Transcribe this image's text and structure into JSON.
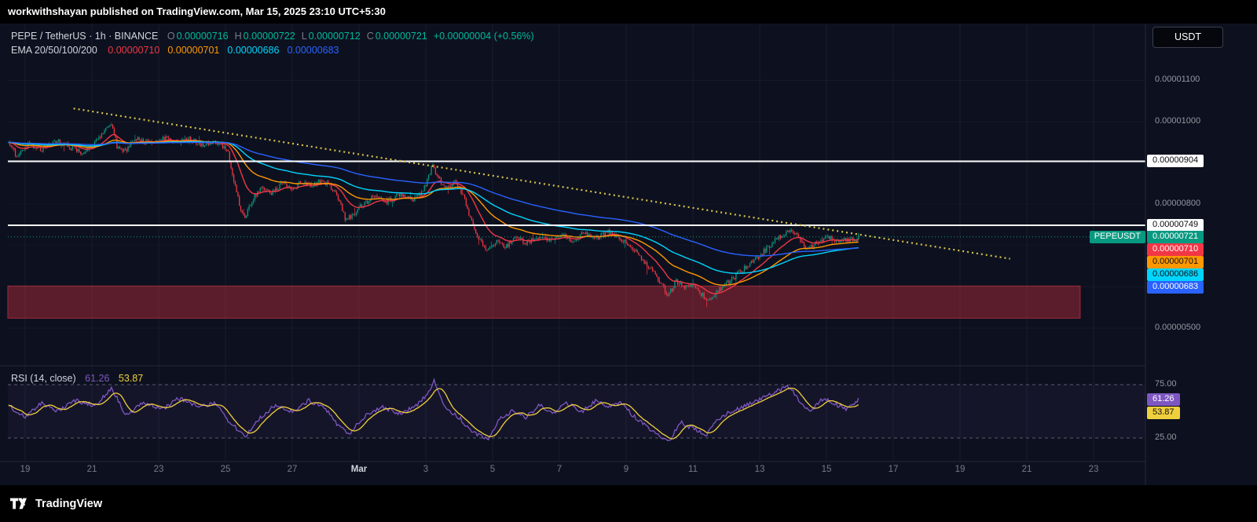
{
  "banner": {
    "text": "workwithshayan published on TradingView.com, Mar 15, 2025 23:10 UTC+5:30"
  },
  "header": {
    "symbol_line": "PEPE / TetherUS · 1h · BINANCE",
    "ohlc": [
      {
        "label": "O",
        "value": "0.00000716"
      },
      {
        "label": "H",
        "value": "0.00000722"
      },
      {
        "label": "L",
        "value": "0.00000712"
      },
      {
        "label": "C",
        "value": "0.00000721"
      }
    ],
    "change": "+0.00000004 (+0.56%)"
  },
  "ema_legend": {
    "label": "EMA 20/50/100/200",
    "values": [
      {
        "text": "0.00000710",
        "color": "#f23645"
      },
      {
        "text": "0.00000701",
        "color": "#ff9800"
      },
      {
        "text": "0.00000686",
        "color": "#00d5ff"
      },
      {
        "text": "0.00000683",
        "color": "#2962ff"
      }
    ]
  },
  "currency_button": "USDT",
  "footer": {
    "brand": "TradingView"
  },
  "colors": {
    "ohlc_text": "#00b99a",
    "background": "#0d111f",
    "grid": "rgba(255,255,255,0.05)"
  },
  "chart_data": {
    "type": "candlestick",
    "title": "PEPE / TetherUS 1h BINANCE",
    "price_unit": "USDT x 1e-8",
    "up_color": "#089981",
    "down_color": "#f23645",
    "close_line": 721,
    "levels": [
      904,
      749
    ],
    "zone": {
      "price_top": 602,
      "price_bottom": 524,
      "day_start": -0.52,
      "day_end": 31.6,
      "color": "#f23645"
    },
    "trendline": {
      "day1": 1.45,
      "price1": 1032,
      "day2": 29.5,
      "price2": 668,
      "color": "#d8c34a",
      "style": "dotted"
    },
    "price_axis": {
      "plain": [
        {
          "text": "0.00001100",
          "price": 1100
        },
        {
          "text": "0.00001000",
          "price": 1000
        },
        {
          "text": "0.00000800",
          "price": 800
        },
        {
          "text": "0.00000500",
          "price": 500
        }
      ],
      "white_badges": [
        {
          "text": "0.00000904",
          "price": 904
        },
        {
          "text": "0.00000749",
          "price": 749
        }
      ]
    },
    "symbol_badge": {
      "label": "PEPEUSDT",
      "price_text": "0.00000721",
      "price": 721,
      "color": "#089981"
    },
    "ema_badges": [
      {
        "text": "0.00000710",
        "bg": "#f23645",
        "fg": "#ffffff"
      },
      {
        "text": "0.00000701",
        "bg": "#ff9800",
        "fg": "#101010"
      },
      {
        "text": "0.00000686",
        "bg": "#00d5ff",
        "fg": "#101010"
      },
      {
        "text": "0.00000683",
        "bg": "#2962ff",
        "fg": "#ffffff"
      }
    ],
    "emas": [
      {
        "period": 20,
        "color": "#f23645"
      },
      {
        "period": 50,
        "color": "#ff9800"
      },
      {
        "period": 100,
        "color": "#00d5ff"
      },
      {
        "period": 200,
        "color": "#2962ff"
      }
    ],
    "time_axis": {
      "labels": [
        {
          "text": "19",
          "day": 0
        },
        {
          "text": "21",
          "day": 2
        },
        {
          "text": "23",
          "day": 4
        },
        {
          "text": "25",
          "day": 6
        },
        {
          "text": "27",
          "day": 8
        },
        {
          "text": "Mar",
          "day": 10,
          "major": true
        },
        {
          "text": "3",
          "day": 12
        },
        {
          "text": "5",
          "day": 14
        },
        {
          "text": "7",
          "day": 16
        },
        {
          "text": "9",
          "day": 18
        },
        {
          "text": "11",
          "day": 20
        },
        {
          "text": "13",
          "day": 22
        },
        {
          "text": "15",
          "day": 24
        },
        {
          "text": "17",
          "day": 26
        },
        {
          "text": "19",
          "day": 28
        },
        {
          "text": "21",
          "day": 30
        },
        {
          "text": "23",
          "day": 32
        }
      ]
    },
    "anchors": [
      [
        -0.5,
        950
      ],
      [
        -0.25,
        915
      ],
      [
        0.1,
        945
      ],
      [
        0.5,
        930
      ],
      [
        0.9,
        955
      ],
      [
        1.3,
        940
      ],
      [
        1.7,
        925
      ],
      [
        2.1,
        950
      ],
      [
        2.45,
        985
      ],
      [
        2.6,
        1000
      ],
      [
        2.75,
        940
      ],
      [
        3.0,
        930
      ],
      [
        3.3,
        958
      ],
      [
        3.7,
        948
      ],
      [
        4.1,
        962
      ],
      [
        4.5,
        952
      ],
      [
        4.9,
        958
      ],
      [
        5.3,
        945
      ],
      [
        5.7,
        952
      ],
      [
        6.05,
        935
      ],
      [
        6.25,
        860
      ],
      [
        6.45,
        790
      ],
      [
        6.6,
        768
      ],
      [
        6.8,
        810
      ],
      [
        7.1,
        842
      ],
      [
        7.4,
        828
      ],
      [
        7.7,
        850
      ],
      [
        8.0,
        838
      ],
      [
        8.3,
        856
      ],
      [
        8.6,
        846
      ],
      [
        8.9,
        858
      ],
      [
        9.15,
        842
      ],
      [
        9.4,
        812
      ],
      [
        9.6,
        762
      ],
      [
        9.8,
        772
      ],
      [
        10.1,
        800
      ],
      [
        10.45,
        818
      ],
      [
        10.8,
        806
      ],
      [
        11.2,
        822
      ],
      [
        11.6,
        812
      ],
      [
        11.9,
        828
      ],
      [
        12.05,
        862
      ],
      [
        12.2,
        895
      ],
      [
        12.35,
        868
      ],
      [
        12.6,
        838
      ],
      [
        12.9,
        856
      ],
      [
        13.15,
        818
      ],
      [
        13.35,
        760
      ],
      [
        13.6,
        712
      ],
      [
        13.85,
        688
      ],
      [
        14.1,
        712
      ],
      [
        14.4,
        698
      ],
      [
        14.7,
        718
      ],
      [
        15.0,
        706
      ],
      [
        15.35,
        722
      ],
      [
        15.7,
        712
      ],
      [
        16.05,
        726
      ],
      [
        16.4,
        714
      ],
      [
        16.75,
        730
      ],
      [
        17.1,
        718
      ],
      [
        17.45,
        732
      ],
      [
        17.8,
        720
      ],
      [
        18.1,
        704
      ],
      [
        18.45,
        668
      ],
      [
        18.8,
        636
      ],
      [
        19.05,
        606
      ],
      [
        19.25,
        580
      ],
      [
        19.5,
        612
      ],
      [
        19.75,
        598
      ],
      [
        20.0,
        608
      ],
      [
        20.25,
        582
      ],
      [
        20.5,
        568
      ],
      [
        20.75,
        592
      ],
      [
        21.0,
        606
      ],
      [
        21.3,
        628
      ],
      [
        21.65,
        652
      ],
      [
        22.0,
        676
      ],
      [
        22.3,
        700
      ],
      [
        22.6,
        722
      ],
      [
        22.9,
        738
      ],
      [
        23.15,
        726
      ],
      [
        23.35,
        692
      ],
      [
        23.6,
        700
      ],
      [
        23.85,
        714
      ],
      [
        24.1,
        720
      ],
      [
        24.35,
        710
      ],
      [
        24.6,
        716
      ],
      [
        24.8,
        712
      ],
      [
        24.96,
        721
      ]
    ],
    "rsi": {
      "label": "RSI (14, close)",
      "value": "61.26",
      "ma_value": "53.87",
      "line_color": "#7e57c2",
      "ma_color": "#f0cf3d",
      "band_color": "#7e57c2",
      "plain_labels": [
        {
          "text": "75.00",
          "value": 75
        },
        {
          "text": "25.00",
          "value": 25
        }
      ],
      "badges": [
        {
          "text": "61.26",
          "bg": "#7e57c2",
          "fg": "#ffffff"
        },
        {
          "text": "53.87",
          "bg": "#f0cf3d",
          "fg": "#101010"
        }
      ],
      "anchors": [
        [
          -0.5,
          55
        ],
        [
          0,
          45
        ],
        [
          0.5,
          58
        ],
        [
          1.0,
          50
        ],
        [
          1.5,
          60
        ],
        [
          2.1,
          55
        ],
        [
          2.6,
          72
        ],
        [
          3.0,
          46
        ],
        [
          3.5,
          58
        ],
        [
          4.1,
          52
        ],
        [
          4.6,
          62
        ],
        [
          5.2,
          54
        ],
        [
          5.7,
          58
        ],
        [
          6.1,
          40
        ],
        [
          6.6,
          27
        ],
        [
          7.1,
          46
        ],
        [
          7.5,
          56
        ],
        [
          8.0,
          50
        ],
        [
          8.5,
          60
        ],
        [
          9.0,
          52
        ],
        [
          9.4,
          36
        ],
        [
          9.7,
          29
        ],
        [
          10.2,
          46
        ],
        [
          10.7,
          54
        ],
        [
          11.2,
          48
        ],
        [
          11.7,
          55
        ],
        [
          12.1,
          68
        ],
        [
          12.25,
          79
        ],
        [
          12.6,
          52
        ],
        [
          13.0,
          44
        ],
        [
          13.4,
          30
        ],
        [
          13.85,
          24
        ],
        [
          14.2,
          42
        ],
        [
          14.6,
          50
        ],
        [
          15.0,
          44
        ],
        [
          15.4,
          56
        ],
        [
          15.8,
          48
        ],
        [
          16.2,
          58
        ],
        [
          16.7,
          50
        ],
        [
          17.1,
          60
        ],
        [
          17.5,
          54
        ],
        [
          17.9,
          58
        ],
        [
          18.2,
          46
        ],
        [
          18.6,
          36
        ],
        [
          19.0,
          26
        ],
        [
          19.3,
          22
        ],
        [
          19.6,
          40
        ],
        [
          20.0,
          34
        ],
        [
          20.4,
          28
        ],
        [
          20.8,
          44
        ],
        [
          21.3,
          52
        ],
        [
          21.8,
          58
        ],
        [
          22.2,
          64
        ],
        [
          22.6,
          70
        ],
        [
          22.9,
          73
        ],
        [
          23.2,
          58
        ],
        [
          23.5,
          50
        ],
        [
          23.9,
          62
        ],
        [
          24.3,
          56
        ],
        [
          24.6,
          52
        ],
        [
          24.96,
          61.26
        ]
      ]
    }
  }
}
